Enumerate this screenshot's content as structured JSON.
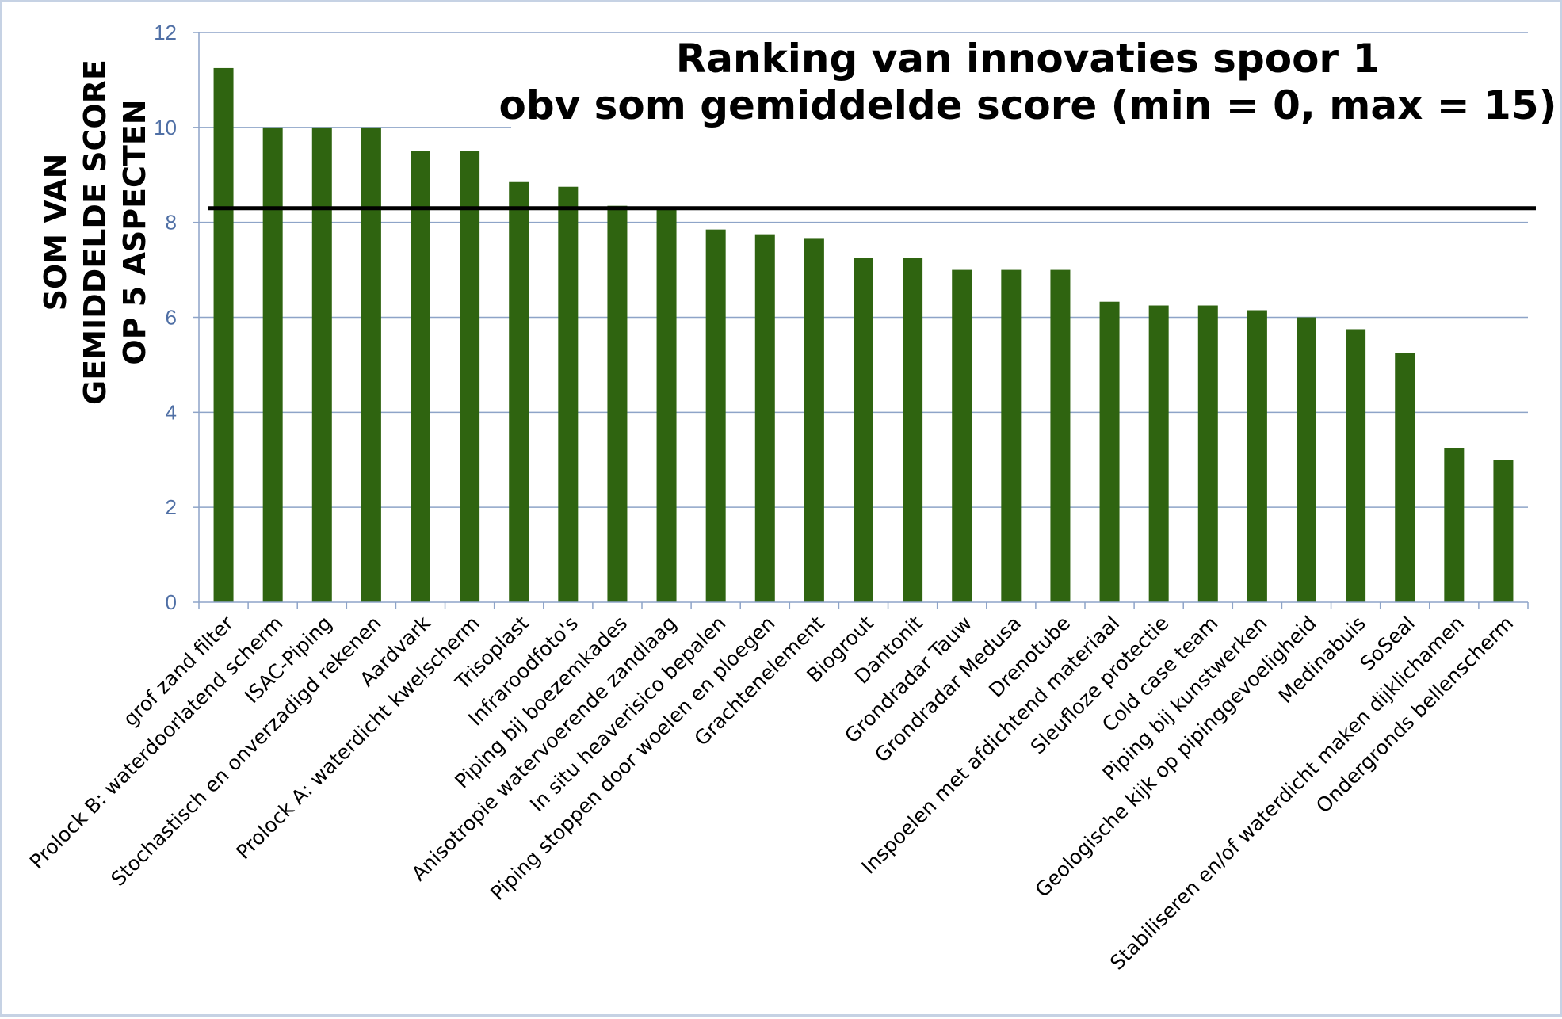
{
  "chart_data": {
    "type": "bar",
    "title_lines": [
      "Ranking van innovaties spoor 1",
      "obv som gemiddelde score (min = 0, max = 15)"
    ],
    "ylabel_lines": [
      "SOM VAN",
      "GEMIDDELDE SCORE",
      "OP 5 ASPECTEN"
    ],
    "xlabel": "",
    "ylim": [
      0,
      12
    ],
    "yticks": [
      "0",
      "2",
      "4",
      "6",
      "8",
      "10",
      "12"
    ],
    "grid": "horizontal",
    "bar_color": "#2f6410",
    "reference_line": {
      "value": 8.3,
      "color": "#000000"
    },
    "categories": [
      "grof zand filter",
      "Prolock B: waterdoorlatend scherm",
      "ISAC-Piping",
      "Stochastisch en onverzadigd rekenen",
      "Aardvark",
      "Prolock A: waterdicht kwelscherm",
      "Trisoplast",
      "Infraroodfoto's",
      "Piping bij boezemkades",
      "Anisotropie watervoerende zandlaag",
      "In situ heaverisico bepalen",
      "Piping stoppen door woelen en ploegen",
      "Grachtenelement",
      "Biogrout",
      "Dantonit",
      "Grondradar Tauw",
      "Grondradar Medusa",
      "Drenotube",
      "Inspoelen met afdichtend materiaal",
      "Sleufloze protectie",
      "Cold case team",
      "Piping bij kunstwerken",
      "Geologische kijk op pipinggevoeligheid",
      "Medinabuis",
      "SoSeal",
      "Stabiliseren en/of waterdicht maken dijklichamen",
      "Ondergronds bellenscherm"
    ],
    "values": [
      11.25,
      10.0,
      10.0,
      10.0,
      9.5,
      9.5,
      8.85,
      8.75,
      8.35,
      8.3,
      7.85,
      7.75,
      7.67,
      7.25,
      7.25,
      7.0,
      7.0,
      7.0,
      6.33,
      6.25,
      6.25,
      6.15,
      6.0,
      5.75,
      5.25,
      3.25,
      3.0
    ]
  }
}
